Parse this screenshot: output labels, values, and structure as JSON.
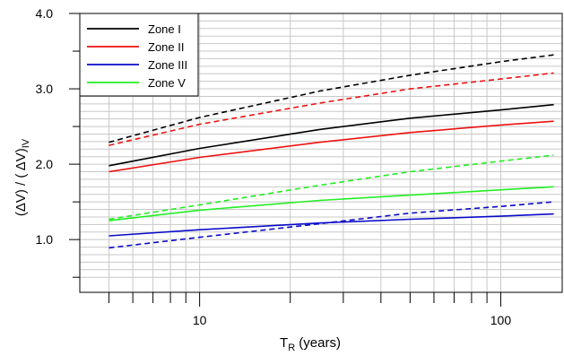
{
  "chart_data": {
    "type": "line",
    "xscale": "log",
    "xlim": [
      4,
      160
    ],
    "ylim": [
      0.3,
      4.0
    ],
    "x_tick_labels": [
      "10",
      "100"
    ],
    "y_tick_labels": [
      "1.0",
      "2.0",
      "3.0",
      "4.0"
    ],
    "ylabel": {
      "main": "(ΔV) / ( ΔV)",
      "sub": "IV"
    },
    "xlabel": {
      "main": "T",
      "sub": "R",
      "rest": " (years)"
    },
    "grid": true,
    "legend_position": "top-left",
    "x": [
      5,
      10,
      25,
      50,
      100,
      150
    ],
    "series": [
      {
        "name": "Zone I",
        "color": "#000000",
        "style": "solid",
        "values": [
          1.98,
          2.21,
          2.46,
          2.61,
          2.72,
          2.79
        ]
      },
      {
        "name": "Zone I",
        "color": "#000000",
        "style": "dashed",
        "legend": false,
        "values": [
          2.29,
          2.62,
          2.97,
          3.18,
          3.36,
          3.45
        ]
      },
      {
        "name": "Zone II",
        "color": "#ee1111",
        "style": "solid",
        "values": [
          1.9,
          2.09,
          2.29,
          2.42,
          2.52,
          2.57
        ]
      },
      {
        "name": "Zone II",
        "color": "#ee1111",
        "style": "dashed",
        "legend": false,
        "values": [
          2.25,
          2.53,
          2.81,
          3.0,
          3.13,
          3.21
        ]
      },
      {
        "name": "Zone III",
        "color": "#0a0ac8",
        "style": "solid",
        "values": [
          1.05,
          1.13,
          1.22,
          1.27,
          1.31,
          1.34
        ]
      },
      {
        "name": "Zone III",
        "color": "#0a0ac8",
        "style": "dashed",
        "legend": false,
        "values": [
          0.89,
          1.03,
          1.21,
          1.35,
          1.44,
          1.5
        ]
      },
      {
        "name": "Zone V",
        "color": "#22ee22",
        "style": "solid",
        "values": [
          1.25,
          1.39,
          1.52,
          1.59,
          1.66,
          1.7
        ]
      },
      {
        "name": "Zone V",
        "color": "#22ee22",
        "style": "dashed",
        "legend": false,
        "values": [
          1.27,
          1.46,
          1.72,
          1.9,
          2.04,
          2.12
        ]
      }
    ]
  }
}
